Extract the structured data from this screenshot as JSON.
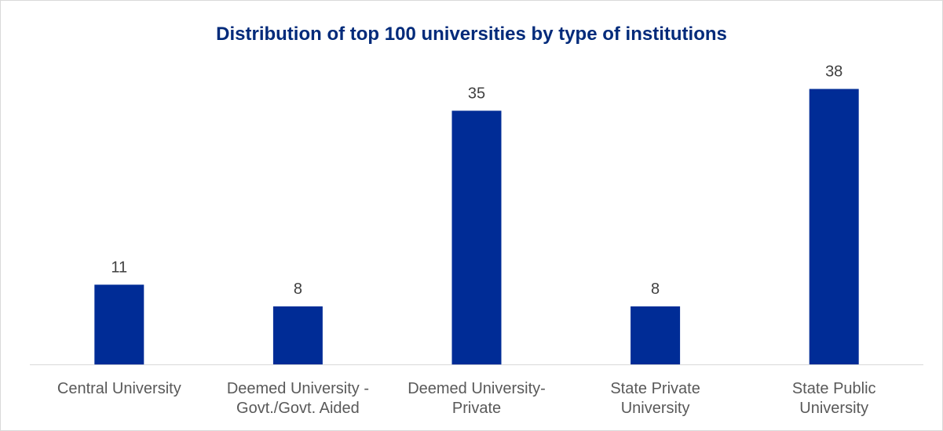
{
  "chart_data": {
    "type": "bar",
    "title": "Distribution of top 100 universities by type of institutions",
    "categories": [
      [
        "Central University"
      ],
      [
        "Deemed University -",
        "Govt./Govt. Aided"
      ],
      [
        "Deemed University-",
        "Private"
      ],
      [
        "State Private",
        "University"
      ],
      [
        "State Public",
        "University"
      ]
    ],
    "values": [
      11,
      8,
      35,
      8,
      38
    ],
    "ylim": [
      0,
      40
    ],
    "grid": false,
    "legend": "none",
    "bar_color": "#002c96",
    "axis_color": "#d9d9d9"
  }
}
